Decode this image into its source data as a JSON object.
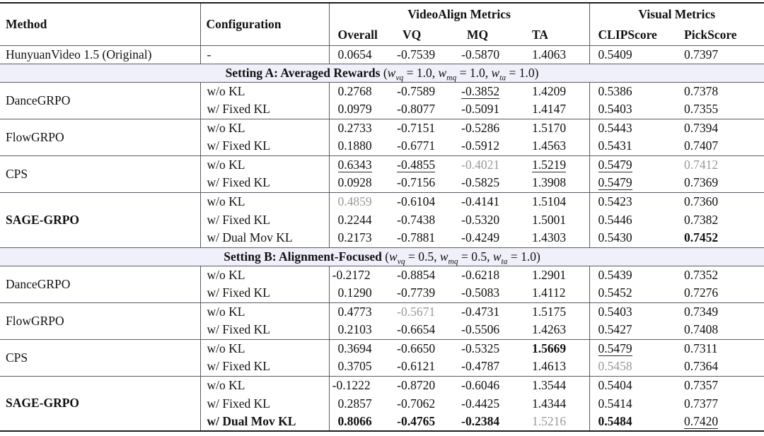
{
  "table": {
    "header": {
      "method": "Method",
      "configuration": "Configuration",
      "videoalign_group": "VideoAlign Metrics",
      "visual_group": "Visual Metrics",
      "subcolumns": [
        "Overall",
        "VQ",
        "MQ",
        "TA",
        "CLIPScore",
        "PickScore"
      ]
    },
    "baseline_row": {
      "method": "HunyuanVideo 1.5 (Original)",
      "configuration": "-",
      "cells": [
        {
          "v": "0.0654"
        },
        {
          "v": "-0.7539"
        },
        {
          "v": "-0.5870"
        },
        {
          "v": "1.4063"
        },
        {
          "v": "0.5409"
        },
        {
          "v": "0.7397"
        }
      ]
    },
    "sections": [
      {
        "title": "Setting A: Averaged Rewards",
        "weights": [
          {
            "name": "vq",
            "value": "1.0"
          },
          {
            "name": "mq",
            "value": "1.0"
          },
          {
            "name": "ta",
            "value": "1.0"
          }
        ],
        "groups": [
          {
            "method": "DanceGRPO",
            "bold": false,
            "rows": [
              {
                "config": "w/o KL",
                "bold": false,
                "cells": [
                  {
                    "v": "0.2768"
                  },
                  {
                    "v": "-0.7589"
                  },
                  {
                    "v": "-0.3852",
                    "style": "underline"
                  },
                  {
                    "v": "1.4209"
                  },
                  {
                    "v": "0.5386"
                  },
                  {
                    "v": "0.7378"
                  }
                ]
              },
              {
                "config": "w/ Fixed KL",
                "bold": false,
                "cells": [
                  {
                    "v": "0.0979"
                  },
                  {
                    "v": "-0.8077"
                  },
                  {
                    "v": "-0.5091"
                  },
                  {
                    "v": "1.4147"
                  },
                  {
                    "v": "0.5403"
                  },
                  {
                    "v": "0.7355"
                  }
                ]
              }
            ]
          },
          {
            "method": "FlowGRPO",
            "bold": false,
            "rows": [
              {
                "config": "w/o KL",
                "bold": false,
                "cells": [
                  {
                    "v": "0.2733"
                  },
                  {
                    "v": "-0.7151"
                  },
                  {
                    "v": "-0.5286"
                  },
                  {
                    "v": "1.5170"
                  },
                  {
                    "v": "0.5443"
                  },
                  {
                    "v": "0.7394"
                  }
                ]
              },
              {
                "config": "w/ Fixed KL",
                "bold": false,
                "cells": [
                  {
                    "v": "0.1880"
                  },
                  {
                    "v": "-0.6771"
                  },
                  {
                    "v": "-0.5912"
                  },
                  {
                    "v": "1.4563"
                  },
                  {
                    "v": "0.5431"
                  },
                  {
                    "v": "0.7407"
                  }
                ]
              }
            ]
          },
          {
            "method": "CPS",
            "bold": false,
            "rows": [
              {
                "config": "w/o KL",
                "bold": false,
                "cells": [
                  {
                    "v": "0.6343",
                    "style": "underline"
                  },
                  {
                    "v": "-0.4855",
                    "style": "underline"
                  },
                  {
                    "v": "-0.4021",
                    "style": "gray"
                  },
                  {
                    "v": "1.5219",
                    "style": "underline"
                  },
                  {
                    "v": "0.5479",
                    "style": "underline"
                  },
                  {
                    "v": "0.7412",
                    "style": "gray"
                  }
                ]
              },
              {
                "config": "w/ Fixed KL",
                "bold": false,
                "cells": [
                  {
                    "v": "0.0928"
                  },
                  {
                    "v": "-0.7156"
                  },
                  {
                    "v": "-0.5825"
                  },
                  {
                    "v": "1.3908"
                  },
                  {
                    "v": "0.5479",
                    "style": "underline"
                  },
                  {
                    "v": "0.7369"
                  }
                ]
              }
            ]
          },
          {
            "method": "SAGE-GRPO",
            "bold": true,
            "rows": [
              {
                "config": "w/o KL",
                "bold": false,
                "cells": [
                  {
                    "v": "0.4859",
                    "style": "gray"
                  },
                  {
                    "v": "-0.6104"
                  },
                  {
                    "v": "-0.4141"
                  },
                  {
                    "v": "1.5104"
                  },
                  {
                    "v": "0.5423"
                  },
                  {
                    "v": "0.7360"
                  }
                ]
              },
              {
                "config": "w/ Fixed KL",
                "bold": false,
                "cells": [
                  {
                    "v": "0.2244"
                  },
                  {
                    "v": "-0.7438"
                  },
                  {
                    "v": "-0.5320"
                  },
                  {
                    "v": "1.5001"
                  },
                  {
                    "v": "0.5446"
                  },
                  {
                    "v": "0.7382"
                  }
                ]
              },
              {
                "config": "w/ Dual Mov KL",
                "bold": false,
                "cells": [
                  {
                    "v": "0.2173"
                  },
                  {
                    "v": "-0.7881"
                  },
                  {
                    "v": "-0.4249"
                  },
                  {
                    "v": "1.4303"
                  },
                  {
                    "v": "0.5430"
                  },
                  {
                    "v": "0.7452",
                    "style": "bold"
                  }
                ]
              }
            ]
          }
        ]
      },
      {
        "title": "Setting B: Alignment-Focused",
        "weights": [
          {
            "name": "vq",
            "value": "0.5"
          },
          {
            "name": "mq",
            "value": "0.5"
          },
          {
            "name": "ta",
            "value": "1.0"
          }
        ],
        "groups": [
          {
            "method": "DanceGRPO",
            "bold": false,
            "rows": [
              {
                "config": "w/o KL",
                "bold": false,
                "cells": [
                  {
                    "v": "-0.2172"
                  },
                  {
                    "v": "-0.8854"
                  },
                  {
                    "v": "-0.6218"
                  },
                  {
                    "v": "1.2901"
                  },
                  {
                    "v": "0.5439"
                  },
                  {
                    "v": "0.7352"
                  }
                ]
              },
              {
                "config": "w/ Fixed KL",
                "bold": false,
                "cells": [
                  {
                    "v": "0.1290"
                  },
                  {
                    "v": "-0.7739"
                  },
                  {
                    "v": "-0.5083"
                  },
                  {
                    "v": "1.4112"
                  },
                  {
                    "v": "0.5452"
                  },
                  {
                    "v": "0.7276"
                  }
                ]
              }
            ]
          },
          {
            "method": "FlowGRPO",
            "bold": false,
            "rows": [
              {
                "config": "w/o KL",
                "bold": false,
                "cells": [
                  {
                    "v": "0.4773"
                  },
                  {
                    "v": "-0.5671",
                    "style": "gray"
                  },
                  {
                    "v": "-0.4731"
                  },
                  {
                    "v": "1.5175"
                  },
                  {
                    "v": "0.5403"
                  },
                  {
                    "v": "0.7349"
                  }
                ]
              },
              {
                "config": "w/ Fixed KL",
                "bold": false,
                "cells": [
                  {
                    "v": "0.2103"
                  },
                  {
                    "v": "-0.6654"
                  },
                  {
                    "v": "-0.5506"
                  },
                  {
                    "v": "1.4263"
                  },
                  {
                    "v": "0.5427"
                  },
                  {
                    "v": "0.7408"
                  }
                ]
              }
            ]
          },
          {
            "method": "CPS",
            "bold": false,
            "rows": [
              {
                "config": "w/o KL",
                "bold": false,
                "cells": [
                  {
                    "v": "0.3694"
                  },
                  {
                    "v": "-0.6650"
                  },
                  {
                    "v": "-0.5325"
                  },
                  {
                    "v": "1.5669",
                    "style": "bold"
                  },
                  {
                    "v": "0.5479",
                    "style": "underline"
                  },
                  {
                    "v": "0.7311"
                  }
                ]
              },
              {
                "config": "w/ Fixed KL",
                "bold": false,
                "cells": [
                  {
                    "v": "0.3705"
                  },
                  {
                    "v": "-0.6121"
                  },
                  {
                    "v": "-0.4787"
                  },
                  {
                    "v": "1.4613"
                  },
                  {
                    "v": "0.5458",
                    "style": "gray"
                  },
                  {
                    "v": "0.7364"
                  }
                ]
              }
            ]
          },
          {
            "method": "SAGE-GRPO",
            "bold": true,
            "rows": [
              {
                "config": "w/o KL",
                "bold": false,
                "cells": [
                  {
                    "v": "-0.1222"
                  },
                  {
                    "v": "-0.8720"
                  },
                  {
                    "v": "-0.6046"
                  },
                  {
                    "v": "1.3544"
                  },
                  {
                    "v": "0.5404"
                  },
                  {
                    "v": "0.7357"
                  }
                ]
              },
              {
                "config": "w/ Fixed KL",
                "bold": false,
                "cells": [
                  {
                    "v": "0.2857"
                  },
                  {
                    "v": "-0.7062"
                  },
                  {
                    "v": "-0.4425"
                  },
                  {
                    "v": "1.4344"
                  },
                  {
                    "v": "0.5414"
                  },
                  {
                    "v": "0.7377"
                  }
                ]
              },
              {
                "config": "w/ Dual Mov KL",
                "bold": true,
                "cells": [
                  {
                    "v": "0.8066",
                    "style": "bold"
                  },
                  {
                    "v": "-0.4765",
                    "style": "bold"
                  },
                  {
                    "v": "-0.2384",
                    "style": "bold"
                  },
                  {
                    "v": "1.5216",
                    "style": "gray"
                  },
                  {
                    "v": "0.5484",
                    "style": "bold"
                  },
                  {
                    "v": "0.7420",
                    "style": "underline"
                  }
                ]
              }
            ]
          }
        ]
      }
    ]
  }
}
